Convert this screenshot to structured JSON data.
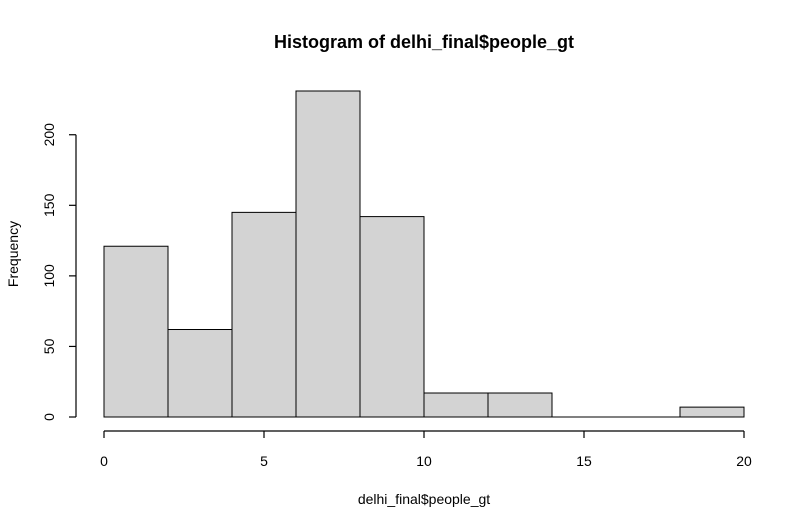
{
  "chart_data": {
    "type": "bar",
    "title": "Histogram of delhi_final$people_gt",
    "xlabel": "delhi_final$people_gt",
    "ylabel": "Frequency",
    "bins": [
      {
        "x0": 0,
        "x1": 2,
        "count": 121
      },
      {
        "x0": 2,
        "x1": 4,
        "count": 62
      },
      {
        "x0": 4,
        "x1": 6,
        "count": 145
      },
      {
        "x0": 6,
        "x1": 8,
        "count": 231
      },
      {
        "x0": 8,
        "x1": 10,
        "count": 142
      },
      {
        "x0": 10,
        "x1": 12,
        "count": 17
      },
      {
        "x0": 12,
        "x1": 14,
        "count": 17
      },
      {
        "x0": 14,
        "x1": 16,
        "count": 0
      },
      {
        "x0": 16,
        "x1": 18,
        "count": 0
      },
      {
        "x0": 18,
        "x1": 20,
        "count": 7
      }
    ],
    "xlim": [
      0,
      20
    ],
    "ylim": [
      0,
      231
    ],
    "x_ticks": [
      0,
      5,
      10,
      15,
      20
    ],
    "y_ticks": [
      0,
      50,
      100,
      150,
      200
    ],
    "bar_color": "#d3d3d3",
    "edge_color": "#000000",
    "grid": false
  }
}
